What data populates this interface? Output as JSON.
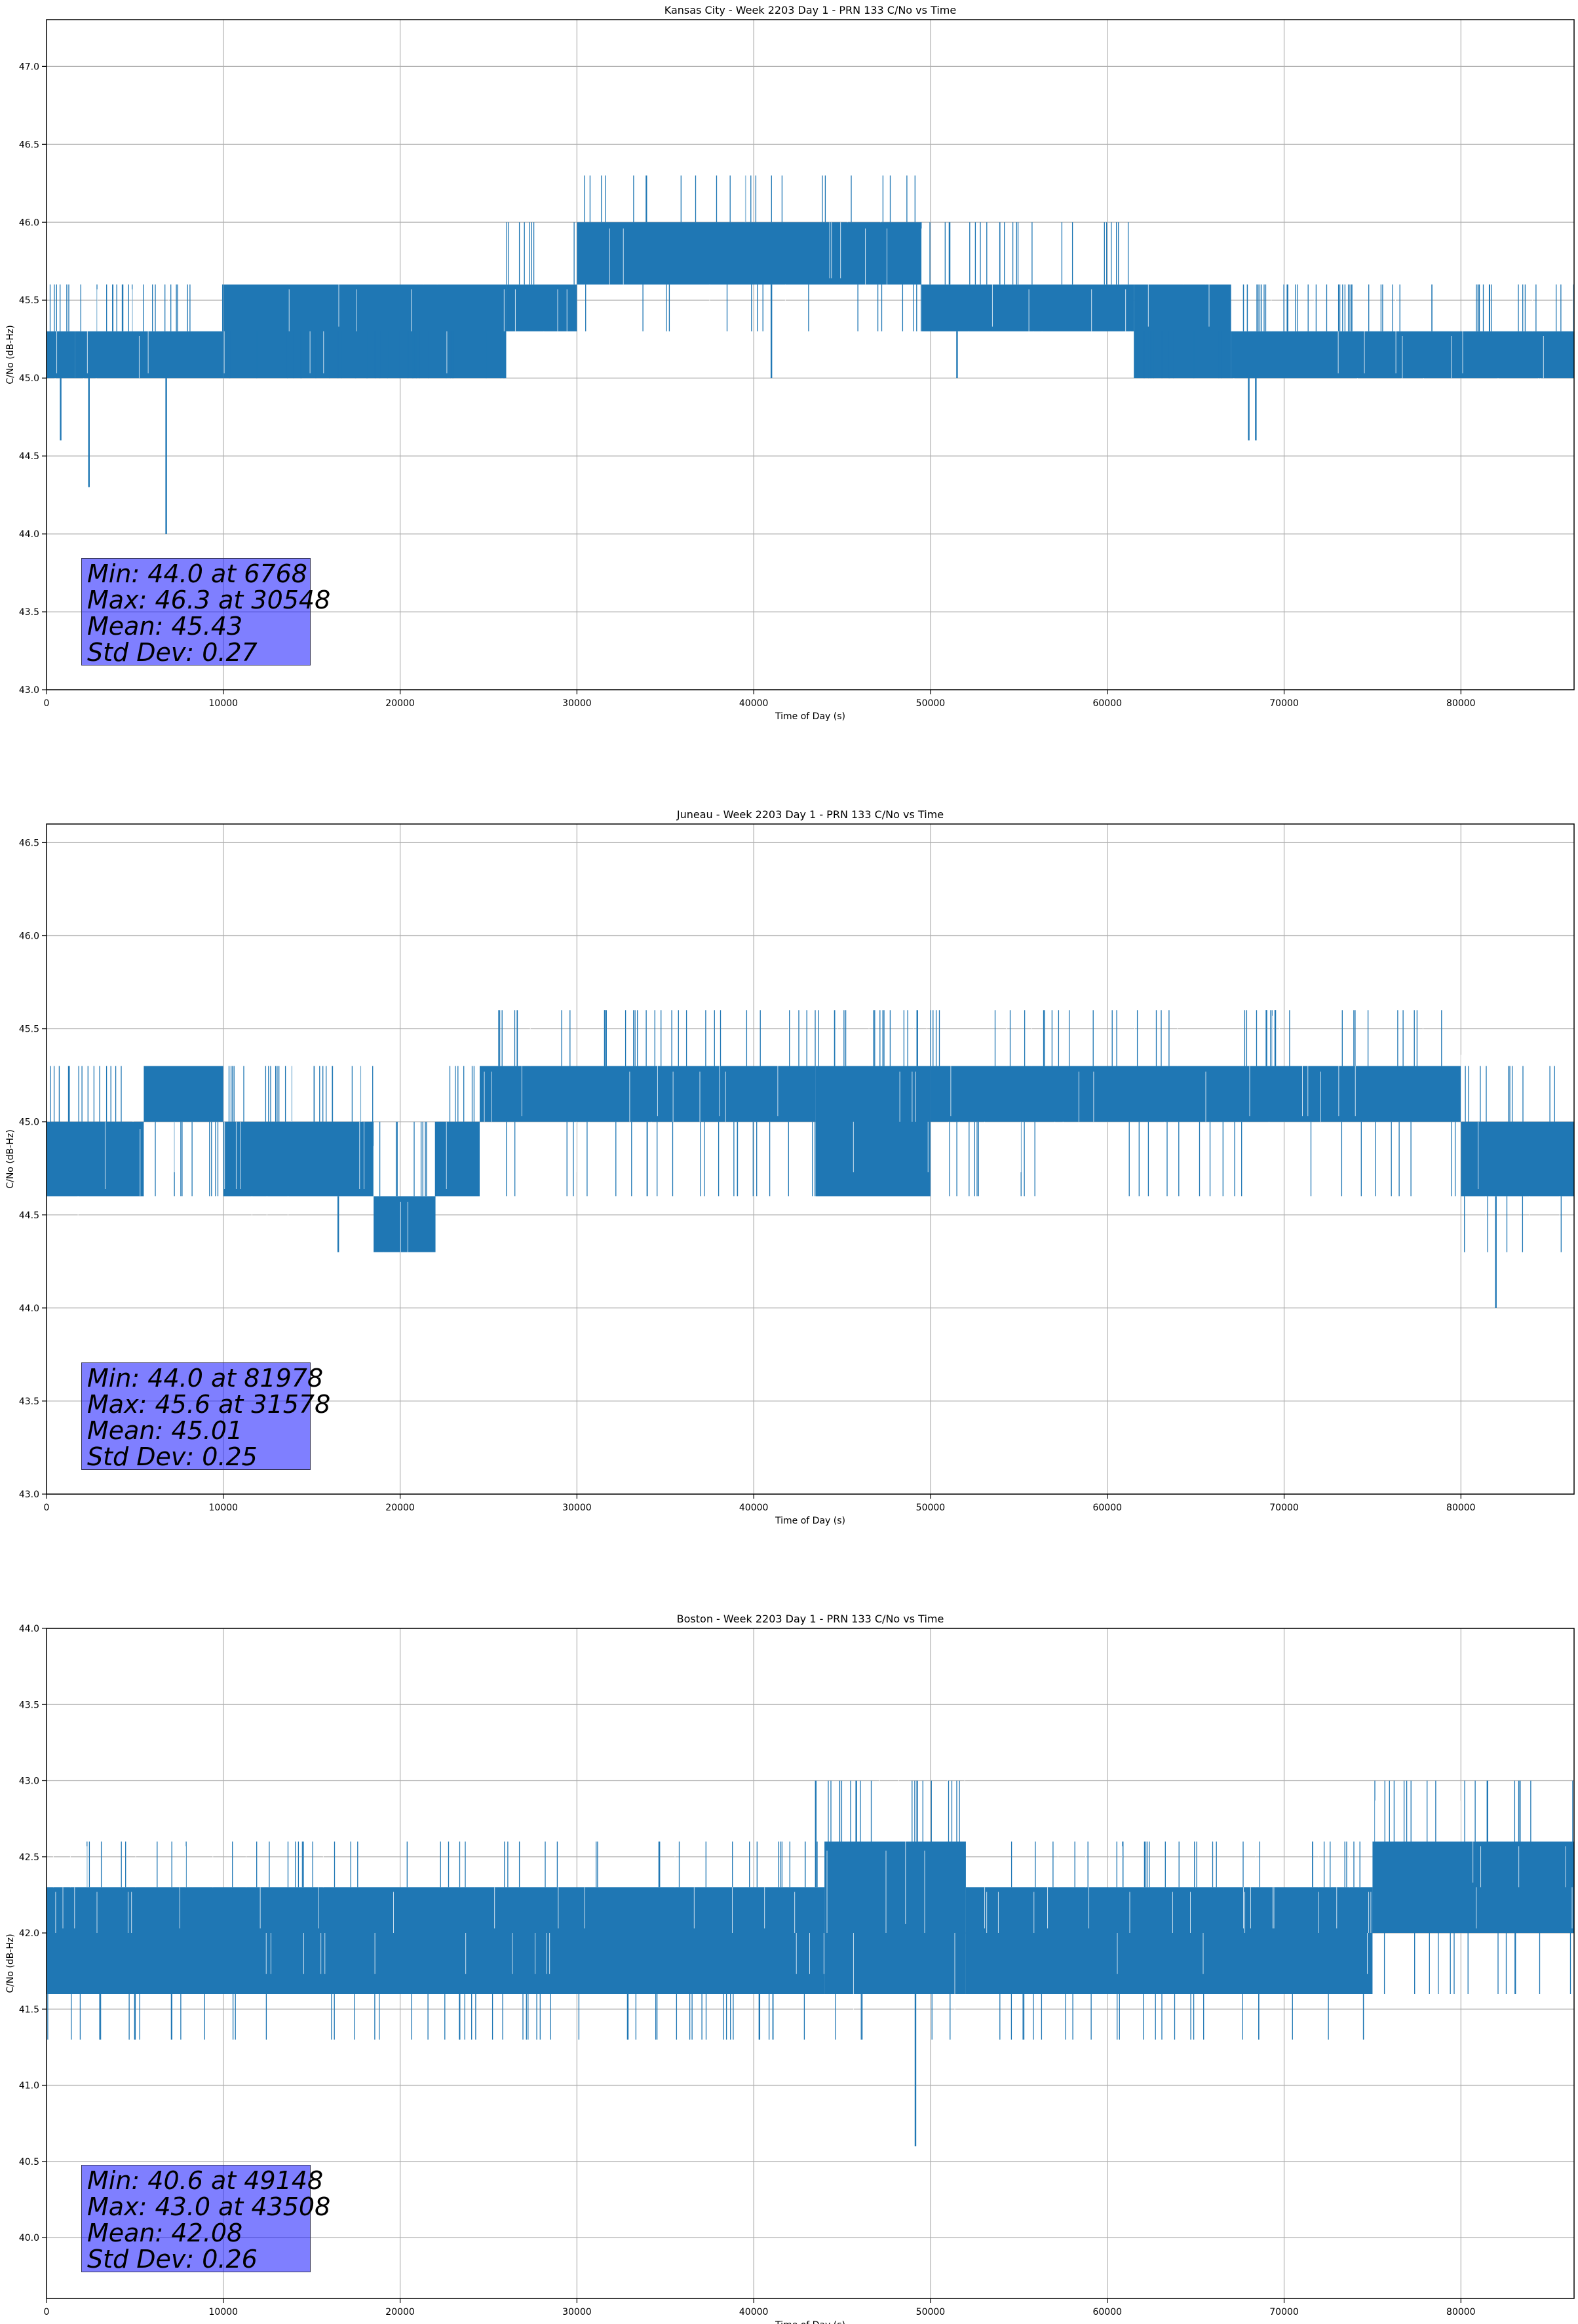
{
  "colors": {
    "series": "#1f77b4",
    "grid": "#b0b0b0",
    "stats_box": "#8080ff"
  },
  "chart_data": [
    {
      "type": "line",
      "title": "Kansas City - Week 2203 Day 1 - PRN 133 C/No vs Time",
      "xlabel": "Time of Day (s)",
      "ylabel": "C/No (dB-Hz)",
      "xlim": [
        0,
        86400
      ],
      "ylim": [
        43.0,
        47.3
      ],
      "xticks": [
        0,
        10000,
        20000,
        30000,
        40000,
        50000,
        60000,
        70000,
        80000
      ],
      "yticks": [
        43.0,
        43.5,
        44.0,
        44.5,
        45.0,
        45.5,
        46.0,
        46.5,
        47.0
      ],
      "grid": true,
      "quantization": [
        45.0,
        45.3,
        45.6,
        46.0,
        46.3
      ],
      "segments": [
        {
          "x": [
            0,
            1600
          ],
          "range": [
            45.0,
            45.3
          ],
          "excursions": [
            45.6
          ]
        },
        {
          "x": [
            1600,
            10000
          ],
          "range": [
            45.0,
            45.3
          ],
          "excursions": [
            45.6
          ]
        },
        {
          "x": [
            10000,
            26000
          ],
          "range": [
            45.0,
            45.6
          ],
          "excursions": [
            45.3
          ]
        },
        {
          "x": [
            26000,
            30000
          ],
          "range": [
            45.3,
            45.6
          ],
          "excursions": [
            46.0
          ]
        },
        {
          "x": [
            30000,
            49500
          ],
          "range": [
            45.6,
            46.0
          ],
          "excursions": [
            45.3,
            46.3
          ]
        },
        {
          "x": [
            49500,
            61500
          ],
          "range": [
            45.3,
            45.6
          ],
          "excursions": [
            46.0
          ]
        },
        {
          "x": [
            61500,
            67000
          ],
          "range": [
            45.0,
            45.6
          ],
          "excursions": [
            45.3
          ]
        },
        {
          "x": [
            67000,
            86400
          ],
          "range": [
            45.0,
            45.3
          ],
          "excursions": [
            45.6
          ]
        }
      ],
      "spikes": [
        {
          "x": 800,
          "y": 44.6
        },
        {
          "x": 2400,
          "y": 44.3
        },
        {
          "x": 6768,
          "y": 44.0
        },
        {
          "x": 41000,
          "y": 45.0
        },
        {
          "x": 51500,
          "y": 45.0
        },
        {
          "x": 68000,
          "y": 44.6
        },
        {
          "x": 68400,
          "y": 44.6
        }
      ],
      "stats": {
        "min": "Min: 44.0 at 6768",
        "max": "Max: 46.3 at 30548",
        "mean": "Mean: 45.43",
        "std": "Std Dev: 0.27"
      }
    },
    {
      "type": "line",
      "title": "Juneau - Week 2203 Day 1 - PRN 133 C/No vs Time",
      "xlabel": "Time of Day (s)",
      "ylabel": "C/No (dB-Hz)",
      "xlim": [
        0,
        86400
      ],
      "ylim": [
        43.0,
        46.6
      ],
      "xticks": [
        0,
        10000,
        20000,
        30000,
        40000,
        50000,
        60000,
        70000,
        80000
      ],
      "yticks": [
        43.0,
        43.5,
        44.0,
        44.5,
        45.0,
        45.5,
        46.0,
        46.5
      ],
      "grid": true,
      "quantization": [
        44.3,
        44.6,
        45.0,
        45.3,
        45.6
      ],
      "segments": [
        {
          "x": [
            0,
            5500
          ],
          "range": [
            44.6,
            45.0
          ],
          "excursions": [
            45.3
          ]
        },
        {
          "x": [
            5500,
            10000
          ],
          "range": [
            45.0,
            45.3
          ],
          "excursions": [
            44.6
          ]
        },
        {
          "x": [
            10000,
            18500
          ],
          "range": [
            44.6,
            45.0
          ],
          "excursions": [
            45.3
          ]
        },
        {
          "x": [
            18500,
            22000
          ],
          "range": [
            44.3,
            44.6
          ],
          "excursions": [
            45.0
          ]
        },
        {
          "x": [
            22000,
            24500
          ],
          "range": [
            44.6,
            45.0
          ],
          "excursions": [
            45.3
          ]
        },
        {
          "x": [
            24500,
            43500
          ],
          "range": [
            45.0,
            45.3
          ],
          "excursions": [
            44.6,
            45.6
          ]
        },
        {
          "x": [
            43500,
            50000
          ],
          "range": [
            44.6,
            45.3
          ],
          "excursions": [
            45.6
          ]
        },
        {
          "x": [
            50000,
            80000
          ],
          "range": [
            45.0,
            45.3
          ],
          "excursions": [
            44.6,
            45.6
          ]
        },
        {
          "x": [
            80000,
            86400
          ],
          "range": [
            44.6,
            45.0
          ],
          "excursions": [
            44.3,
            45.3
          ]
        }
      ],
      "spikes": [
        {
          "x": 81978,
          "y": 44.0
        },
        {
          "x": 69000,
          "y": 45.6
        },
        {
          "x": 69500,
          "y": 45.6
        },
        {
          "x": 31578,
          "y": 45.6
        },
        {
          "x": 16500,
          "y": 44.3
        }
      ],
      "stats": {
        "min": "Min: 44.0 at 81978",
        "max": "Max: 45.6 at 31578",
        "mean": "Mean: 45.01",
        "std": "Std Dev: 0.25"
      }
    },
    {
      "type": "line",
      "title": "Boston - Week 2203 Day 1 - PRN 133 C/No vs Time",
      "xlabel": "Time of Day (s)",
      "ylabel": "C/No (dB-Hz)",
      "xlim": [
        0,
        86400
      ],
      "ylim": [
        39.6,
        44.0
      ],
      "xticks": [
        0,
        10000,
        20000,
        30000,
        40000,
        50000,
        60000,
        70000,
        80000
      ],
      "yticks": [
        40.0,
        40.5,
        41.0,
        41.5,
        42.0,
        42.5,
        43.0,
        43.5,
        44.0
      ],
      "grid": true,
      "quantization": [
        41.3,
        41.6,
        42.0,
        42.3,
        42.6,
        43.0
      ],
      "segments": [
        {
          "x": [
            0,
            44000
          ],
          "range": [
            41.6,
            42.3
          ],
          "excursions": [
            41.3,
            42.6
          ]
        },
        {
          "x": [
            44000,
            52000
          ],
          "range": [
            41.6,
            42.6
          ],
          "excursions": [
            41.3,
            43.0
          ]
        },
        {
          "x": [
            52000,
            75000
          ],
          "range": [
            41.6,
            42.3
          ],
          "excursions": [
            41.3,
            42.6
          ]
        },
        {
          "x": [
            75000,
            86400
          ],
          "range": [
            42.0,
            42.6
          ],
          "excursions": [
            41.6,
            43.0
          ]
        }
      ],
      "spikes": [
        {
          "x": 49148,
          "y": 40.6
        },
        {
          "x": 43508,
          "y": 43.0
        },
        {
          "x": 45800,
          "y": 43.0
        },
        {
          "x": 81500,
          "y": 43.0
        },
        {
          "x": 5000,
          "y": 41.3
        }
      ],
      "stats": {
        "min": "Min: 40.6 at 49148",
        "max": "Max: 43.0 at 43508",
        "mean": "Mean: 42.08",
        "std": "Std Dev: 0.26"
      }
    }
  ]
}
